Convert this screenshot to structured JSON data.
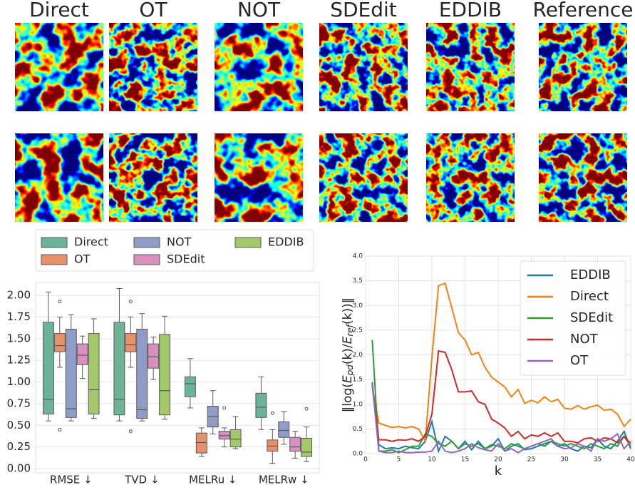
{
  "image_grid": {
    "titles": [
      "Direct",
      "OT",
      "NOT",
      "SDEdit",
      "EDDIB",
      "Reference"
    ]
  },
  "chart_data": [
    {
      "type": "box",
      "categories": [
        "RMSE ↓",
        "TVD ↓",
        "MELRu ↓",
        "MELRw ↓"
      ],
      "ylim": [
        -0.05,
        2.15
      ],
      "yticks": [
        {
          "value": 0,
          "label": "0.00"
        },
        {
          "value": 0.25,
          "label": "0.25"
        },
        {
          "value": 0.5,
          "label": "0.50"
        },
        {
          "value": 0.75,
          "label": "0.75"
        },
        {
          "value": 1,
          "label": "1.00"
        },
        {
          "value": 1.25,
          "label": "1.25"
        },
        {
          "value": 1.5,
          "label": "1.50"
        },
        {
          "value": 1.75,
          "label": "1.75"
        },
        {
          "value": 2,
          "label": "2.00"
        }
      ],
      "grid": true,
      "series": [
        {
          "name": "Direct",
          "color": "#6db39a",
          "boxes": [
            {
              "whislo": 0.55,
              "q1": 0.63,
              "med": 0.8,
              "q3": 1.69,
              "whishi": 2.04,
              "fliers": []
            },
            {
              "whislo": 0.55,
              "q1": 0.62,
              "med": 0.8,
              "q3": 1.69,
              "whishi": 2.08,
              "fliers": []
            },
            {
              "whislo": 0.7,
              "q1": 0.83,
              "med": 0.98,
              "q3": 1.06,
              "whishi": 1.27,
              "fliers": []
            },
            {
              "whislo": 0.45,
              "q1": 0.59,
              "med": 0.71,
              "q3": 0.87,
              "whishi": 1.06,
              "fliers": []
            }
          ]
        },
        {
          "name": "OT",
          "color": "#e8906a",
          "boxes": [
            {
              "whislo": 1.17,
              "q1": 1.35,
              "med": 1.42,
              "q3": 1.56,
              "whishi": 1.75,
              "fliers": [
                1.93,
                0.45
              ]
            },
            {
              "whislo": 1.17,
              "q1": 1.35,
              "med": 1.43,
              "q3": 1.56,
              "whishi": 1.75,
              "fliers": [
                1.93,
                0.43
              ]
            },
            {
              "whislo": 0.14,
              "q1": 0.18,
              "med": 0.3,
              "q3": 0.41,
              "whishi": 0.47,
              "fliers": []
            },
            {
              "whislo": 0.06,
              "q1": 0.2,
              "med": 0.26,
              "q3": 0.33,
              "whishi": 0.45,
              "fliers": [
                0.64
              ]
            }
          ]
        },
        {
          "name": "NOT",
          "color": "#8f9cc5",
          "boxes": [
            {
              "whislo": 0.55,
              "q1": 0.59,
              "med": 0.69,
              "q3": 1.61,
              "whishi": 1.78,
              "fliers": []
            },
            {
              "whislo": 0.55,
              "q1": 0.58,
              "med": 0.68,
              "q3": 1.61,
              "whishi": 1.79,
              "fliers": []
            },
            {
              "whislo": 0.4,
              "q1": 0.48,
              "med": 0.6,
              "q3": 0.72,
              "whishi": 0.9,
              "fliers": []
            },
            {
              "whislo": 0.28,
              "q1": 0.36,
              "med": 0.44,
              "q3": 0.54,
              "whishi": 0.66,
              "fliers": []
            }
          ]
        },
        {
          "name": "SDEdit",
          "color": "#d98fbf",
          "boxes": [
            {
              "whislo": 1.04,
              "q1": 1.2,
              "med": 1.31,
              "q3": 1.44,
              "whishi": 1.53,
              "fliers": []
            },
            {
              "whislo": 1.03,
              "q1": 1.16,
              "med": 1.29,
              "q3": 1.44,
              "whishi": 1.52,
              "fliers": []
            },
            {
              "whislo": 0.25,
              "q1": 0.34,
              "med": 0.38,
              "q3": 0.43,
              "whishi": 0.47,
              "fliers": [
                0.7
              ]
            },
            {
              "whislo": 0.12,
              "q1": 0.2,
              "med": 0.25,
              "q3": 0.36,
              "whishi": 0.43,
              "fliers": []
            }
          ]
        },
        {
          "name": "EDDIB",
          "color": "#a3c86a",
          "boxes": [
            {
              "whislo": 0.58,
              "q1": 0.63,
              "med": 0.91,
              "q3": 1.56,
              "whishi": 1.73,
              "fliers": []
            },
            {
              "whislo": 0.57,
              "q1": 0.62,
              "med": 0.9,
              "q3": 1.55,
              "whishi": 1.76,
              "fliers": []
            },
            {
              "whislo": 0.23,
              "q1": 0.25,
              "med": 0.34,
              "q3": 0.45,
              "whishi": 0.6,
              "fliers": []
            },
            {
              "whislo": 0.08,
              "q1": 0.14,
              "med": 0.19,
              "q3": 0.35,
              "whishi": 0.48,
              "fliers": [
                0.69
              ]
            }
          ]
        }
      ]
    },
    {
      "type": "line",
      "xlabel": "k",
      "ylabel": [
        "‖log(",
        "E",
        "pd",
        "(k)/",
        "E",
        "ref",
        "(k))‖"
      ],
      "xlim": [
        0,
        40
      ],
      "ylim": [
        0,
        4
      ],
      "xticks": [
        0,
        5,
        10,
        15,
        20,
        25,
        30,
        35,
        40
      ],
      "yticks": [
        {
          "value": 0,
          "label": "0.0"
        },
        {
          "value": 0.5,
          "label": "0.5"
        },
        {
          "value": 1,
          "label": "1.0"
        },
        {
          "value": 1.5,
          "label": "1.5"
        },
        {
          "value": 2,
          "label": "2.0"
        },
        {
          "value": 2.5,
          "label": "2.5"
        },
        {
          "value": 3,
          "label": "3.0"
        },
        {
          "value": 3.5,
          "label": "3.5"
        },
        {
          "value": 4,
          "label": "4.0"
        }
      ],
      "grid": true,
      "legend": "upper right",
      "x": [
        1,
        2,
        3,
        4,
        5,
        6,
        7,
        8,
        9,
        10,
        11,
        12,
        13,
        14,
        15,
        16,
        17,
        18,
        19,
        20,
        21,
        22,
        23,
        24,
        25,
        26,
        27,
        28,
        29,
        30,
        31,
        32,
        33,
        34,
        35,
        36,
        37,
        38,
        39,
        40
      ],
      "series": [
        {
          "name": "EDDIB",
          "color": "#1f77b4",
          "values": [
            1.45,
            0.18,
            0.1,
            0.12,
            0.1,
            0.15,
            0.12,
            0.1,
            0.25,
            0.65,
            0.05,
            0.35,
            0.25,
            0.1,
            0.25,
            0.08,
            0.25,
            0.1,
            0.15,
            0.3,
            0.05,
            0.15,
            0.2,
            0.08,
            0.1,
            0.15,
            0.2,
            0.25,
            0.15,
            0.2,
            0.1,
            0.05,
            0.15,
            0.12,
            0.3,
            0.15,
            0.1,
            0.25,
            0.45,
            0.1
          ]
        },
        {
          "name": "Direct",
          "color": "#ff7f0e",
          "values": [
            1.35,
            0.62,
            0.57,
            0.53,
            0.55,
            0.52,
            0.55,
            0.5,
            0.25,
            1.95,
            3.4,
            3.45,
            2.95,
            2.45,
            2.3,
            2,
            2.05,
            1.75,
            1.55,
            1.45,
            1.35,
            1.15,
            1.3,
            1.02,
            1.08,
            1.03,
            1.15,
            1.05,
            1.1,
            0.92,
            0.9,
            0.97,
            0.9,
            0.95,
            0.98,
            0.88,
            0.9,
            0.8,
            0.55,
            0.7
          ]
        },
        {
          "name": "SDEdit",
          "color": "#2ca02c",
          "values": [
            2.3,
            0.05,
            0.05,
            0.08,
            0.02,
            0.08,
            0.15,
            0.15,
            0.4,
            0.35,
            0.2,
            0.15,
            0.25,
            0.1,
            0.2,
            0.15,
            0.2,
            0.1,
            0.18,
            0.15,
            0.1,
            0.2,
            0.15,
            0.1,
            0.15,
            0.2,
            0.15,
            0.25,
            0.2,
            0.15,
            0.2,
            0.15,
            0.1,
            0.2,
            0.15,
            0.1,
            0.2,
            0.15,
            0.35,
            0.15
          ]
        },
        {
          "name": "NOT",
          "color": "#d62728",
          "values": [
            1.4,
            0.28,
            0.28,
            0.25,
            0.28,
            0.27,
            0.3,
            0.25,
            0.35,
            0.8,
            2.08,
            2.05,
            1.7,
            1.25,
            1.25,
            1.27,
            1.05,
            1,
            0.7,
            0.62,
            0.52,
            0.35,
            0.45,
            0.3,
            0.38,
            0.35,
            0.42,
            0.35,
            0.42,
            0.25,
            0.25,
            0.22,
            0.3,
            0.32,
            0.25,
            0.32,
            0.3,
            0.22,
            0.35,
            0.2
          ]
        },
        {
          "name": "OT",
          "color": "#9467bd",
          "values": [
            1.4,
            0.05,
            0.02,
            0.02,
            0.05,
            0.02,
            0.02,
            0.03,
            0.03,
            0.05,
            0.25,
            0.05,
            0.02,
            0.05,
            0.1,
            0.2,
            0.12,
            0.08,
            0.05,
            0.2,
            0.05,
            0.1,
            0.02,
            0.1,
            0.15,
            0.2,
            0.25,
            0.3,
            0.15,
            0.1,
            0.12,
            0.2,
            0.15,
            0.05,
            0.3,
            0.25,
            0.3,
            0.4,
            0.1,
            0.25
          ]
        }
      ]
    }
  ]
}
